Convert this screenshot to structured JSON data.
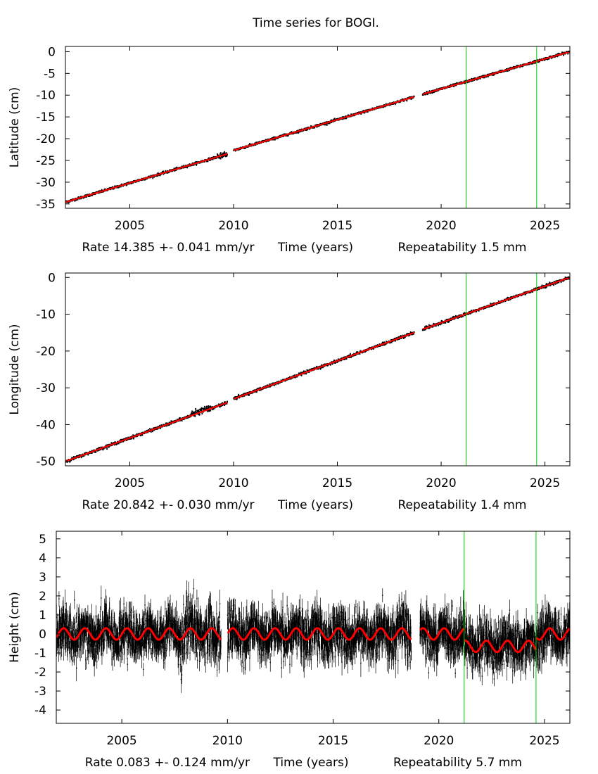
{
  "figure_title": "Time series for BOGI.",
  "chart_data": [
    {
      "type": "scatter",
      "name": "latitude",
      "ylabel": "Latitude (cm)",
      "xlabel": "Time (years)",
      "rate_text": "Rate 14.385 +- 0.041 mm/yr",
      "repeat_text": "Repeatability 1.5 mm",
      "xlim": [
        2001.9,
        2026.2
      ],
      "ylim": [
        -36,
        1.2
      ],
      "xticks": [
        2005,
        2010,
        2015,
        2020,
        2025
      ],
      "xtick_labels": [
        "2005",
        "2010",
        "2015",
        "2020",
        "2025"
      ],
      "yticks": [
        0,
        -5,
        -10,
        -15,
        -20,
        -25,
        -30,
        -35
      ],
      "ytick_labels": [
        "0",
        "-5",
        "-10",
        "-15",
        "-20",
        "-25",
        "-30",
        "-35"
      ],
      "vlines": [
        2021.2,
        2024.6
      ],
      "gaps": [
        [
          2009.7,
          2010.0
        ],
        [
          2018.7,
          2019.1
        ]
      ],
      "fit": [
        {
          "x": 2001.9,
          "y": -34.6
        },
        {
          "x": 2009.7,
          "y": -23.5
        },
        {
          "x": 2010.0,
          "y": -22.7
        },
        {
          "x": 2018.7,
          "y": -10.4
        },
        {
          "x": 2019.1,
          "y": -9.8
        },
        {
          "x": 2026.2,
          "y": 0.0
        }
      ],
      "series": [
        {
          "name": "observations",
          "color": "#000000"
        },
        {
          "name": "model fit",
          "color": "#ff0000"
        },
        {
          "name": "breaks",
          "color": "#00cc00"
        }
      ]
    },
    {
      "type": "scatter",
      "name": "longitude",
      "ylabel": "Longitude (cm)",
      "xlabel": "Time (years)",
      "rate_text": "Rate 20.842 +- 0.030 mm/yr",
      "repeat_text": "Repeatability 1.4 mm",
      "xlim": [
        2001.9,
        2026.2
      ],
      "ylim": [
        -51.2,
        1.2
      ],
      "xticks": [
        2005,
        2010,
        2015,
        2020,
        2025
      ],
      "xtick_labels": [
        "2005",
        "2010",
        "2015",
        "2020",
        "2025"
      ],
      "yticks": [
        0,
        -10,
        -20,
        -30,
        -40,
        -50
      ],
      "ytick_labels": [
        "0",
        "-10",
        "-20",
        "-30",
        "-40",
        "-50"
      ],
      "vlines": [
        2021.2,
        2024.6
      ],
      "gaps": [
        [
          2009.7,
          2010.0
        ],
        [
          2018.7,
          2019.1
        ]
      ],
      "fit": [
        {
          "x": 2001.9,
          "y": -50.0
        },
        {
          "x": 2009.7,
          "y": -34.0
        },
        {
          "x": 2010.0,
          "y": -33.0
        },
        {
          "x": 2018.7,
          "y": -15.0
        },
        {
          "x": 2019.1,
          "y": -14.1
        },
        {
          "x": 2026.2,
          "y": 0.0
        }
      ],
      "series": [
        {
          "name": "observations",
          "color": "#000000"
        },
        {
          "name": "model fit",
          "color": "#ff0000"
        },
        {
          "name": "breaks",
          "color": "#00cc00"
        }
      ]
    },
    {
      "type": "scatter",
      "name": "height",
      "ylabel": "Height (cm)",
      "xlabel": "Time (years)",
      "rate_text": "Rate 0.083 +- 0.124 mm/yr",
      "repeat_text": "Repeatability 5.7 mm",
      "xlim": [
        2001.9,
        2026.2
      ],
      "ylim": [
        -4.7,
        5.4
      ],
      "xticks": [
        2005,
        2010,
        2015,
        2020,
        2025
      ],
      "xtick_labels": [
        "2005",
        "2010",
        "2015",
        "2020",
        "2025"
      ],
      "yticks": [
        5,
        4,
        3,
        2,
        1,
        0,
        -1,
        -2,
        -3,
        -4
      ],
      "ytick_labels": [
        "5",
        "4",
        "3",
        "2",
        "1",
        "0",
        "-1",
        "-2",
        "-3",
        "-4"
      ],
      "vlines": [
        2021.2,
        2024.6
      ],
      "gaps": [
        [
          2009.7,
          2010.0
        ],
        [
          2018.7,
          2019.1
        ]
      ],
      "seasonal_amplitude": 0.3,
      "offsets": [
        {
          "from": 2001.9,
          "to": 2021.2,
          "mean": 0.0
        },
        {
          "from": 2021.2,
          "to": 2024.6,
          "mean": -0.65
        },
        {
          "from": 2024.6,
          "to": 2026.2,
          "mean": 0.0
        }
      ],
      "noise_sigma": 0.6,
      "series": [
        {
          "name": "observations",
          "color": "#000000"
        },
        {
          "name": "model fit",
          "color": "#ff0000"
        },
        {
          "name": "breaks",
          "color": "#00cc00"
        }
      ]
    }
  ]
}
